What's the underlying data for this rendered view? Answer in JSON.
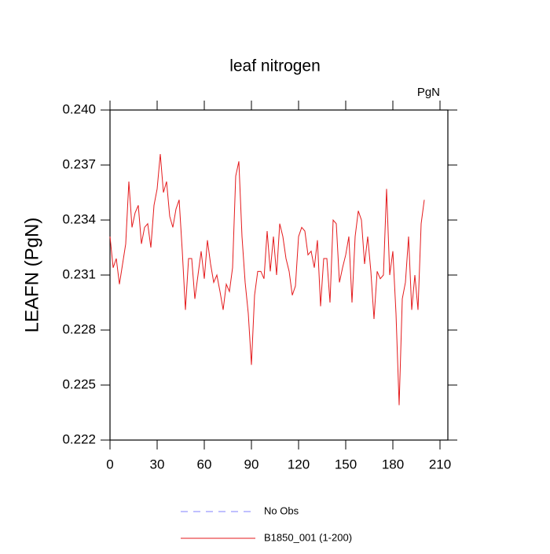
{
  "chart_data": {
    "type": "line",
    "title": "leaf nitrogen",
    "units_label": "PgN",
    "y_label": "LEAFN  (PgN)",
    "xlim": [
      0,
      215
    ],
    "xticks": [
      0,
      30,
      60,
      90,
      120,
      150,
      180,
      210
    ],
    "ylim": [
      0.222,
      0.24
    ],
    "yticks": [
      0.222,
      0.225,
      0.228,
      0.231,
      0.234,
      0.237,
      {
        "value": 0.24,
        "label": "0.240"
      }
    ],
    "obs_label": "No Obs",
    "obs_color": "#8080ff",
    "x": [
      0,
      2,
      4,
      6,
      8,
      10,
      12,
      14,
      16,
      18,
      20,
      22,
      24,
      26,
      28,
      30,
      32,
      34,
      36,
      38,
      40,
      42,
      44,
      46,
      48,
      50,
      52,
      54,
      56,
      58,
      60,
      62,
      64,
      66,
      68,
      70,
      72,
      74,
      76,
      78,
      80,
      82,
      84,
      86,
      88,
      90,
      92,
      94,
      96,
      98,
      100,
      102,
      104,
      106,
      108,
      110,
      112,
      114,
      116,
      118,
      120,
      122,
      124,
      126,
      128,
      130,
      132,
      134,
      136,
      138,
      140,
      142,
      144,
      146,
      148,
      150,
      152,
      154,
      156,
      158,
      160,
      162,
      164,
      166,
      168,
      170,
      172,
      174,
      176,
      178,
      180,
      182,
      184,
      186,
      188,
      190,
      192,
      194,
      196,
      198,
      200
    ],
    "series": [
      {
        "name": "B1850_001 (1-200)",
        "color": "#e41a1c",
        "values": [
          0.2331,
          0.2314,
          0.2319,
          0.2305,
          0.2316,
          0.2327,
          0.2361,
          0.2336,
          0.2344,
          0.2348,
          0.2327,
          0.2336,
          0.2338,
          0.2325,
          0.2348,
          0.2357,
          0.2376,
          0.2355,
          0.2361,
          0.2342,
          0.2336,
          0.2346,
          0.2351,
          0.2323,
          0.2291,
          0.2319,
          0.2319,
          0.2297,
          0.231,
          0.2323,
          0.2308,
          0.2329,
          0.2316,
          0.2306,
          0.231,
          0.2301,
          0.2291,
          0.2305,
          0.2301,
          0.2314,
          0.2364,
          0.2372,
          0.2331,
          0.2306,
          0.2289,
          0.2261,
          0.2299,
          0.2312,
          0.2312,
          0.2308,
          0.2334,
          0.2312,
          0.2331,
          0.231,
          0.2338,
          0.2331,
          0.2319,
          0.2312,
          0.2299,
          0.2304,
          0.2331,
          0.2336,
          0.2334,
          0.2321,
          0.2323,
          0.2314,
          0.2329,
          0.2293,
          0.2319,
          0.2319,
          0.2295,
          0.234,
          0.2338,
          0.2306,
          0.2314,
          0.2321,
          0.2331,
          0.2295,
          0.2331,
          0.2345,
          0.234,
          0.2316,
          0.2331,
          0.2312,
          0.2286,
          0.2312,
          0.2308,
          0.231,
          0.2357,
          0.231,
          0.2323,
          0.2289,
          0.2239,
          0.2297,
          0.2306,
          0.2331,
          0.2291,
          0.231,
          0.2291,
          0.2338,
          0.2351
        ]
      }
    ]
  }
}
